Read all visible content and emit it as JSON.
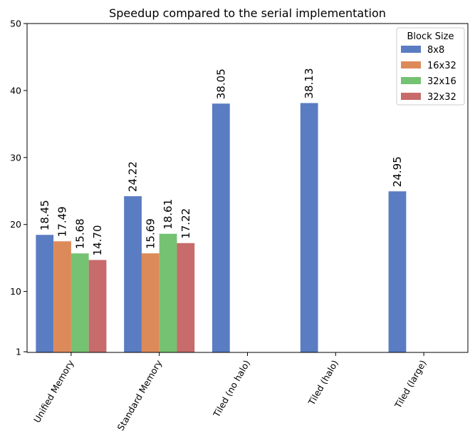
{
  "chart_data": {
    "type": "bar",
    "title": "Speedup compared to the serial implementation",
    "xlabel": "",
    "ylabel": "",
    "ylim": [
      0.9,
      50
    ],
    "yticks": [
      1,
      10,
      20,
      30,
      40,
      50
    ],
    "ytick_labels": [
      "1",
      "10",
      "20",
      "30",
      "40",
      "50"
    ],
    "grid": false,
    "categories": [
      "Unified Memory",
      "Standard Memory",
      "Tiled (no halo)",
      "Tiled (halo)",
      "Tiled (large)"
    ],
    "series": [
      {
        "name": "8x8",
        "color": "#5a7cc2",
        "values": [
          18.45,
          24.22,
          38.05,
          38.13,
          24.95
        ],
        "labels": [
          "18.45",
          "24.22",
          "38.05",
          "38.13",
          "24.95"
        ]
      },
      {
        "name": "16x32",
        "color": "#dd8a5a",
        "values": [
          17.49,
          15.69,
          null,
          null,
          null
        ],
        "labels": [
          "17.49",
          "15.69",
          "",
          "",
          ""
        ]
      },
      {
        "name": "32x16",
        "color": "#75c272",
        "values": [
          15.68,
          18.61,
          null,
          null,
          null
        ],
        "labels": [
          "15.68",
          "18.61",
          "",
          "",
          ""
        ]
      },
      {
        "name": "32x32",
        "color": "#c76b6b",
        "values": [
          14.7,
          17.22,
          null,
          null,
          null
        ],
        "labels": [
          "14.70",
          "17.22",
          "",
          "",
          ""
        ]
      }
    ],
    "legend": {
      "title": "Block Size",
      "placement": "top-right"
    },
    "xtick_rotation": 60
  }
}
